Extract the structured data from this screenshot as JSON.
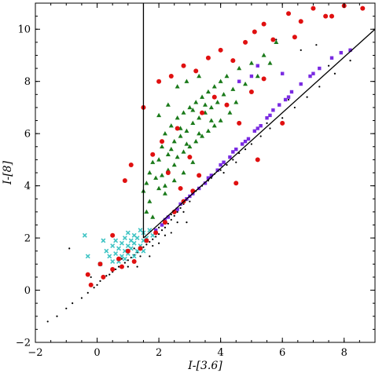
{
  "chart_data": {
    "type": "scatter",
    "title": "",
    "xlabel": "I-[3.6]",
    "ylabel": "I-[8]",
    "xlim": [
      -2,
      9
    ],
    "ylim": [
      -2,
      11
    ],
    "x_ticks": [
      -2,
      0,
      2,
      4,
      6,
      8
    ],
    "x_tick_labels": [
      "−2",
      "0",
      "2",
      "4",
      "6",
      "8"
    ],
    "y_ticks": [
      -2,
      0,
      2,
      4,
      6,
      8,
      10
    ],
    "y_tick_labels": [
      "−2",
      "0",
      "2",
      "4",
      "6",
      "8",
      "10"
    ],
    "grid": false,
    "legend": "none",
    "lines": [
      {
        "name": "vertical-cut",
        "points": [
          [
            1.5,
            2.0
          ],
          [
            1.5,
            11.0
          ]
        ],
        "color": "#000000"
      },
      {
        "name": "diagonal-cut",
        "points": [
          [
            1.5,
            2.0
          ],
          [
            9.0,
            10.0
          ]
        ],
        "color": "#000000"
      }
    ],
    "series": [
      {
        "marker": "dot",
        "color": "#000000",
        "points": [
          [
            -1.6,
            -1.2
          ],
          [
            -1.3,
            -1.0
          ],
          [
            -1.0,
            -0.7
          ],
          [
            -0.8,
            -0.5
          ],
          [
            -0.5,
            -0.3
          ],
          [
            -0.3,
            -0.1
          ],
          [
            -0.1,
            0.1
          ],
          [
            0.0,
            0.2
          ],
          [
            0.1,
            0.35
          ],
          [
            0.2,
            0.45
          ],
          [
            0.3,
            0.55
          ],
          [
            0.4,
            0.6
          ],
          [
            0.5,
            0.7
          ],
          [
            0.6,
            0.8
          ],
          [
            0.7,
            0.9
          ],
          [
            0.8,
            0.95
          ],
          [
            0.9,
            1.05
          ],
          [
            1.0,
            1.15
          ],
          [
            1.1,
            1.25
          ],
          [
            1.2,
            1.35
          ],
          [
            1.3,
            1.45
          ],
          [
            1.4,
            1.55
          ],
          [
            1.5,
            1.65
          ],
          [
            1.6,
            1.75
          ],
          [
            1.7,
            1.85
          ],
          [
            1.8,
            1.95
          ],
          [
            1.9,
            2.05
          ],
          [
            2.0,
            2.15
          ],
          [
            2.1,
            2.3
          ],
          [
            2.2,
            2.4
          ],
          [
            2.3,
            2.55
          ],
          [
            2.4,
            2.7
          ],
          [
            2.5,
            2.85
          ],
          [
            2.6,
            3.0
          ],
          [
            2.7,
            3.15
          ],
          [
            2.8,
            3.3
          ],
          [
            2.9,
            3.45
          ],
          [
            3.0,
            3.6
          ],
          [
            3.2,
            3.8
          ],
          [
            3.4,
            4.0
          ],
          [
            3.6,
            4.2
          ],
          [
            3.8,
            4.45
          ],
          [
            4.0,
            4.6
          ],
          [
            4.2,
            4.8
          ],
          [
            4.4,
            5.0
          ],
          [
            4.6,
            5.25
          ],
          [
            4.8,
            5.4
          ],
          [
            5.0,
            5.6
          ],
          [
            5.3,
            5.9
          ],
          [
            5.6,
            6.2
          ],
          [
            6.0,
            6.6
          ],
          [
            6.4,
            7.0
          ],
          [
            6.8,
            7.4
          ],
          [
            7.2,
            7.8
          ],
          [
            7.7,
            8.3
          ],
          [
            8.2,
            8.8
          ],
          [
            0.8,
            1.2
          ],
          [
            1.2,
            1.6
          ],
          [
            1.6,
            2.0
          ],
          [
            2.0,
            2.4
          ],
          [
            2.4,
            2.9
          ],
          [
            2.8,
            3.0
          ],
          [
            3.0,
            3.4
          ],
          [
            1.0,
            0.9
          ],
          [
            1.4,
            1.3
          ],
          [
            1.8,
            1.7
          ],
          [
            2.2,
            2.1
          ],
          [
            2.6,
            2.6
          ],
          [
            3.3,
            3.9
          ],
          [
            3.7,
            4.3
          ],
          [
            4.1,
            4.5
          ],
          [
            4.5,
            4.9
          ],
          [
            5.5,
            6.4
          ],
          [
            6.2,
            7.3
          ],
          [
            7.5,
            8.6
          ],
          [
            5.8,
            9.6
          ],
          [
            6.6,
            9.2
          ],
          [
            7.1,
            9.4
          ],
          [
            -0.9,
            1.6
          ],
          [
            -0.2,
            0.5
          ],
          [
            1.3,
            0.9
          ],
          [
            1.7,
            1.3
          ],
          [
            2.0,
            1.8
          ],
          [
            2.4,
            2.2
          ],
          [
            2.9,
            2.6
          ]
        ]
      },
      {
        "marker": "cross",
        "color": "#40c4c4",
        "points": [
          [
            0.3,
            1.5
          ],
          [
            0.4,
            1.3
          ],
          [
            0.5,
            1.7
          ],
          [
            0.6,
            1.4
          ],
          [
            0.6,
            1.9
          ],
          [
            0.7,
            1.6
          ],
          [
            0.8,
            1.8
          ],
          [
            0.8,
            1.3
          ],
          [
            0.9,
            1.5
          ],
          [
            0.9,
            2.0
          ],
          [
            1.0,
            1.7
          ],
          [
            1.0,
            1.4
          ],
          [
            1.1,
            1.9
          ],
          [
            1.1,
            1.6
          ],
          [
            1.2,
            1.8
          ],
          [
            1.2,
            2.1
          ],
          [
            1.3,
            1.5
          ],
          [
            1.3,
            2.0
          ],
          [
            1.4,
            1.7
          ],
          [
            1.4,
            2.3
          ],
          [
            1.5,
            1.9
          ],
          [
            1.5,
            2.2
          ],
          [
            1.6,
            2.0
          ],
          [
            1.7,
            2.3
          ],
          [
            1.8,
            2.1
          ],
          [
            0.7,
            1.1
          ],
          [
            1.0,
            2.2
          ],
          [
            1.2,
            1.3
          ],
          [
            1.5,
            1.5
          ],
          [
            -0.4,
            2.1
          ],
          [
            -0.3,
            1.3
          ],
          [
            0.1,
            1.0
          ],
          [
            0.2,
            1.9
          ],
          [
            0.5,
            1.1
          ],
          [
            0.9,
            1.2
          ]
        ]
      },
      {
        "marker": "square",
        "color": "#7a2be2",
        "points": [
          [
            1.9,
            2.3
          ],
          [
            2.1,
            2.5
          ],
          [
            2.3,
            2.8
          ],
          [
            2.5,
            3.0
          ],
          [
            2.7,
            3.3
          ],
          [
            2.9,
            3.5
          ],
          [
            3.1,
            3.7
          ],
          [
            3.3,
            3.9
          ],
          [
            3.5,
            4.1
          ],
          [
            3.7,
            4.4
          ],
          [
            3.9,
            4.6
          ],
          [
            4.1,
            4.9
          ],
          [
            4.3,
            5.1
          ],
          [
            4.5,
            5.4
          ],
          [
            4.7,
            5.6
          ],
          [
            4.9,
            5.8
          ],
          [
            5.1,
            6.1
          ],
          [
            5.3,
            6.3
          ],
          [
            5.5,
            6.6
          ],
          [
            5.7,
            6.9
          ],
          [
            5.9,
            7.1
          ],
          [
            6.1,
            7.3
          ],
          [
            6.3,
            7.6
          ],
          [
            6.6,
            7.9
          ],
          [
            6.9,
            8.2
          ],
          [
            7.2,
            8.5
          ],
          [
            7.6,
            8.9
          ],
          [
            7.9,
            9.1
          ],
          [
            5.0,
            8.2
          ],
          [
            5.2,
            8.6
          ],
          [
            4.6,
            8.0
          ],
          [
            6.0,
            8.3
          ],
          [
            2.2,
            2.7
          ],
          [
            2.6,
            3.1
          ],
          [
            3.0,
            3.6
          ],
          [
            3.6,
            4.3
          ],
          [
            4.0,
            4.8
          ],
          [
            4.4,
            5.3
          ],
          [
            4.8,
            5.7
          ],
          [
            5.2,
            6.2
          ],
          [
            5.6,
            6.7
          ],
          [
            6.2,
            7.4
          ],
          [
            7.0,
            8.3
          ],
          [
            8.2,
            9.2
          ]
        ]
      },
      {
        "marker": "triangle",
        "color": "#1a7a1a",
        "points": [
          [
            2.0,
            5.0
          ],
          [
            2.1,
            5.5
          ],
          [
            2.2,
            6.0
          ],
          [
            2.3,
            5.2
          ],
          [
            2.4,
            6.3
          ],
          [
            2.5,
            5.7
          ],
          [
            2.6,
            6.6
          ],
          [
            2.7,
            5.9
          ],
          [
            2.8,
            6.8
          ],
          [
            2.9,
            6.1
          ],
          [
            3.0,
            7.0
          ],
          [
            3.1,
            6.4
          ],
          [
            3.2,
            7.2
          ],
          [
            3.3,
            6.6
          ],
          [
            3.4,
            7.4
          ],
          [
            3.5,
            6.8
          ],
          [
            3.6,
            7.6
          ],
          [
            3.7,
            7.0
          ],
          [
            3.8,
            7.8
          ],
          [
            3.9,
            7.2
          ],
          [
            4.0,
            8.0
          ],
          [
            4.1,
            7.5
          ],
          [
            4.2,
            8.2
          ],
          [
            4.4,
            7.7
          ],
          [
            4.6,
            8.5
          ],
          [
            4.8,
            7.9
          ],
          [
            5.0,
            8.7
          ],
          [
            5.2,
            8.2
          ],
          [
            5.4,
            9.0
          ],
          [
            5.6,
            8.7
          ],
          [
            5.8,
            9.5
          ],
          [
            2.3,
            4.6
          ],
          [
            2.5,
            4.8
          ],
          [
            2.6,
            5.1
          ],
          [
            2.8,
            5.3
          ],
          [
            3.0,
            5.5
          ],
          [
            3.2,
            5.7
          ],
          [
            3.4,
            5.9
          ],
          [
            3.6,
            6.1
          ],
          [
            3.8,
            6.3
          ],
          [
            4.0,
            6.5
          ],
          [
            2.4,
            5.4
          ],
          [
            2.7,
            6.2
          ],
          [
            2.9,
            5.6
          ],
          [
            3.1,
            6.9
          ],
          [
            3.3,
            6.0
          ],
          [
            3.5,
            7.1
          ],
          [
            3.7,
            6.5
          ],
          [
            1.6,
            4.1
          ],
          [
            1.7,
            4.5
          ],
          [
            1.8,
            4.9
          ],
          [
            1.9,
            4.3
          ],
          [
            2.0,
            3.9
          ],
          [
            2.1,
            4.4
          ],
          [
            2.2,
            3.7
          ],
          [
            1.7,
            3.4
          ],
          [
            1.6,
            3.0
          ],
          [
            1.8,
            2.8
          ],
          [
            1.5,
            3.8
          ],
          [
            2.6,
            7.8
          ],
          [
            2.9,
            8.0
          ],
          [
            3.3,
            8.2
          ],
          [
            2.3,
            7.1
          ],
          [
            2.0,
            6.7
          ],
          [
            4.3,
            6.8
          ],
          [
            4.5,
            7.2
          ],
          [
            3.1,
            4.9
          ],
          [
            2.8,
            4.5
          ],
          [
            2.5,
            4.2
          ],
          [
            2.2,
            4.0
          ]
        ]
      },
      {
        "marker": "circle",
        "color": "#e01010",
        "points": [
          [
            -0.3,
            0.6
          ],
          [
            -0.2,
            0.2
          ],
          [
            0.1,
            1.0
          ],
          [
            0.2,
            0.5
          ],
          [
            0.5,
            0.8
          ],
          [
            0.7,
            1.2
          ],
          [
            0.8,
            0.9
          ],
          [
            1.0,
            1.5
          ],
          [
            1.2,
            1.1
          ],
          [
            1.4,
            1.6
          ],
          [
            1.6,
            1.9
          ],
          [
            1.9,
            2.2
          ],
          [
            2.2,
            2.6
          ],
          [
            2.5,
            3.0
          ],
          [
            2.8,
            3.4
          ],
          [
            3.1,
            3.8
          ],
          [
            0.5,
            2.1
          ],
          [
            0.9,
            4.2
          ],
          [
            1.1,
            4.8
          ],
          [
            1.5,
            7.0
          ],
          [
            2.0,
            8.0
          ],
          [
            2.4,
            8.2
          ],
          [
            2.8,
            8.6
          ],
          [
            3.2,
            8.4
          ],
          [
            3.6,
            8.9
          ],
          [
            4.0,
            9.2
          ],
          [
            4.4,
            8.8
          ],
          [
            4.8,
            9.5
          ],
          [
            5.1,
            9.9
          ],
          [
            5.4,
            10.2
          ],
          [
            5.7,
            9.6
          ],
          [
            6.2,
            10.6
          ],
          [
            6.6,
            10.3
          ],
          [
            7.0,
            10.8
          ],
          [
            7.4,
            10.5
          ],
          [
            8.0,
            10.9
          ],
          [
            8.6,
            10.8
          ],
          [
            2.6,
            6.2
          ],
          [
            3.0,
            5.1
          ],
          [
            3.4,
            6.8
          ],
          [
            3.8,
            7.4
          ],
          [
            4.2,
            7.1
          ],
          [
            4.6,
            6.4
          ],
          [
            5.0,
            7.6
          ],
          [
            5.4,
            8.1
          ],
          [
            2.3,
            4.5
          ],
          [
            2.7,
            3.9
          ],
          [
            3.3,
            4.4
          ],
          [
            1.8,
            5.2
          ],
          [
            2.1,
            5.7
          ],
          [
            4.5,
            4.1
          ],
          [
            5.2,
            5.0
          ],
          [
            6.0,
            6.4
          ],
          [
            6.4,
            9.7
          ],
          [
            7.6,
            10.5
          ]
        ]
      }
    ]
  }
}
